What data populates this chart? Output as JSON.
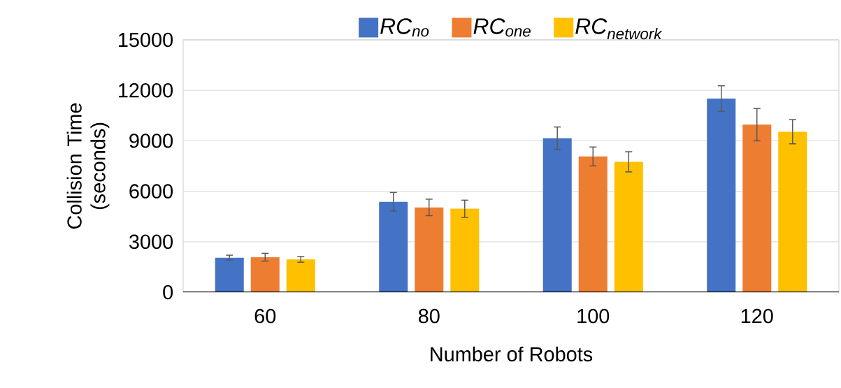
{
  "chart_data": {
    "type": "bar",
    "xlabel": "Number of Robots",
    "ylabel": "Collision Time (seconds)",
    "categories": [
      "60",
      "80",
      "100",
      "120"
    ],
    "series": [
      {
        "name": "RC$_{no}$",
        "color": "#4472c4",
        "values": [
          2050,
          5375,
          9150,
          11510
        ],
        "errors": [
          150,
          550,
          670,
          760
        ]
      },
      {
        "name": "RC$_{one}$",
        "color": "#ed7d31",
        "values": [
          2080,
          5040,
          8070,
          9960
        ],
        "errors": [
          230,
          490,
          560,
          960
        ]
      },
      {
        "name": "RC$_{network}$",
        "color": "#ffc000",
        "values": [
          1950,
          4960,
          7750,
          9540
        ],
        "errors": [
          170,
          510,
          600,
          720
        ]
      }
    ],
    "ylim": [
      0,
      15000
    ],
    "yticks": [
      0,
      3000,
      6000,
      9000,
      12000,
      15000
    ],
    "grid": "y",
    "legend": "top"
  }
}
